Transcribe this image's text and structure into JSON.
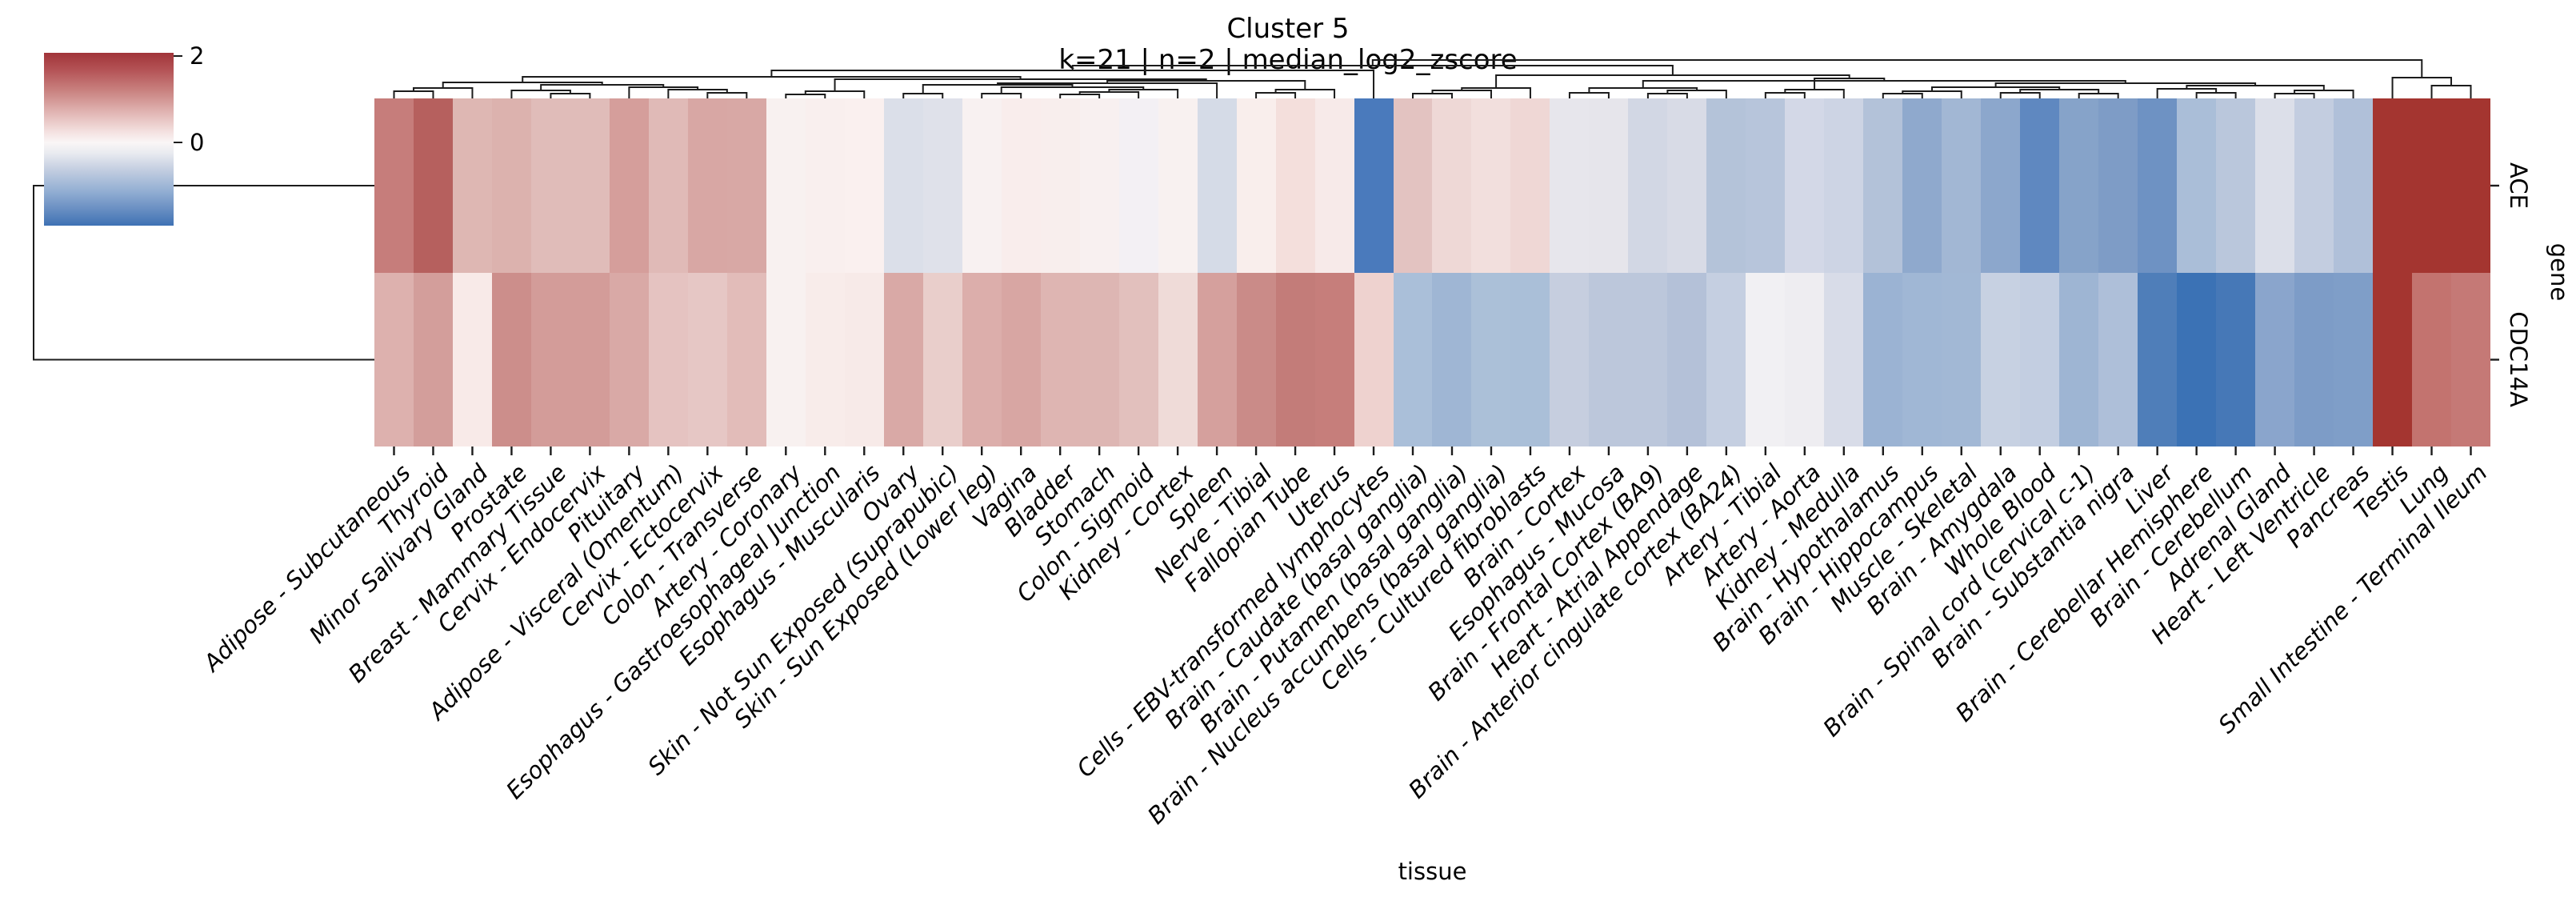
{
  "title": "Cluster 5",
  "subtitle": "k=21 | n=2 | median_log2_zscore",
  "chart_data": {
    "type": "heatmap",
    "title": "Cluster 5",
    "subtitle": "k=21 | n=2 | median_log2_zscore",
    "xlabel": "tissue",
    "ylabel": "gene",
    "rows": [
      "ACE",
      "CDC14A"
    ],
    "columns": [
      "Adipose - Subcutaneous",
      "Thyroid",
      "Minor Salivary Gland",
      "Prostate",
      "Breast - Mammary Tissue",
      "Cervix - Endocervix",
      "Pituitary",
      "Adipose - Visceral (Omentum)",
      "Cervix - Ectocervix",
      "Colon - Transverse",
      "Artery - Coronary",
      "Esophagus - Gastroesophageal Junction",
      "Esophagus - Muscularis",
      "Ovary",
      "Skin - Not Sun Exposed (Suprapubic)",
      "Skin - Sun Exposed (Lower leg)",
      "Vagina",
      "Bladder",
      "Stomach",
      "Colon - Sigmoid",
      "Kidney - Cortex",
      "Spleen",
      "Nerve - Tibial",
      "Fallopian Tube",
      "Uterus",
      "Cells - EBV-transformed lymphocytes",
      "Brain - Caudate (basal ganglia)",
      "Brain - Putamen (basal ganglia)",
      "Brain - Nucleus accumbens (basal ganglia)",
      "Cells - Cultured fibroblasts",
      "Brain - Cortex",
      "Esophagus - Mucosa",
      "Brain - Frontal Cortex (BA9)",
      "Heart - Atrial Appendage",
      "Brain - Anterior cingulate cortex (BA24)",
      "Artery - Tibial",
      "Artery - Aorta",
      "Kidney - Medulla",
      "Brain - Hypothalamus",
      "Brain - Hippocampus",
      "Muscle - Skeletal",
      "Brain - Amygdala",
      "Whole Blood",
      "Brain - Spinal cord (cervical c-1)",
      "Brain - Substantia nigra",
      "Liver",
      "Brain - Cerebellar Hemisphere",
      "Brain - Cerebellum",
      "Adrenal Gland",
      "Heart - Left Ventricle",
      "Pancreas",
      "Testis",
      "Lung",
      "Small Intestine - Terminal Ileum"
    ],
    "series": [
      {
        "name": "ACE",
        "values": [
          1.1,
          1.55,
          0.5,
          0.55,
          0.45,
          0.45,
          0.75,
          0.5,
          0.65,
          0.65,
          0.05,
          0.07,
          0.06,
          -0.25,
          -0.22,
          0.05,
          0.08,
          0.07,
          0.05,
          0,
          0.05,
          -0.3,
          0.07,
          0.25,
          0.1,
          -1.6,
          0.4,
          0.25,
          0.2,
          0.27,
          -0.08,
          -0.08,
          -0.35,
          -0.28,
          -0.6,
          -0.58,
          -0.33,
          -0.4,
          -0.62,
          -0.95,
          -0.75,
          -1,
          -1.45,
          -1.05,
          -1.15,
          -1.3,
          -0.72,
          -0.55,
          -0.25,
          -0.48,
          -0.68,
          2.05,
          2.05,
          2.05
        ],
        "colors": [
          "#c67d7b",
          "#b6605e",
          "#deb7b3",
          "#dcb2ae",
          "#e0bcb9",
          "#e0bcb9",
          "#d59e9b",
          "#e0bab7",
          "#d8a7a4",
          "#d8a8a5",
          "#f8f1f0",
          "#f9efee",
          "#faf0ef",
          "#dbdfe9",
          "#dfe1ea",
          "#f8f1f1",
          "#f9edec",
          "#f8eeed",
          "#f8f0f0",
          "#f3f0f4",
          "#f8f1f0",
          "#d5dbe7",
          "#f9eeec",
          "#f4dfdc",
          "#f7eae9",
          "#4a7abc",
          "#e3c3c1",
          "#eed8d6",
          "#f2dfdd",
          "#efd7d5",
          "#e7e6ec",
          "#e6e5eb",
          "#d2d7e4",
          "#d8dbe6",
          "#b4c3d9",
          "#b7c5db",
          "#d3d8e7",
          "#cdd4e4",
          "#b3c2d9",
          "#8fa9cd",
          "#a2b7d4",
          "#8ca7cc",
          "#5f88c0",
          "#86a3c9",
          "#7e9cc6",
          "#6e92c3",
          "#aabed8",
          "#bac7dc",
          "#dcdfe9",
          "#c3cde0",
          "#b0c0d9",
          "#a43530",
          "#a43530",
          "#a43530"
        ]
      },
      {
        "name": "CDC14A",
        "values": [
          0.55,
          0.75,
          0.1,
          0.9,
          0.78,
          0.78,
          0.6,
          0.4,
          0.38,
          0.48,
          0.05,
          0.12,
          0.15,
          0.6,
          0.35,
          0.62,
          0.65,
          0.52,
          0.5,
          0.43,
          0.22,
          0.7,
          0.95,
          1.15,
          1.1,
          0.3,
          -0.7,
          -0.85,
          -0.68,
          -0.7,
          -0.45,
          -0.55,
          -0.55,
          -0.65,
          -0.45,
          -0.02,
          -0.05,
          -0.28,
          -0.9,
          -0.83,
          -0.82,
          -0.43,
          -0.48,
          -0.87,
          -0.7,
          -1.55,
          -1.8,
          -1.7,
          -1.1,
          -1.2,
          -1.18,
          2,
          1.2,
          1.15
        ],
        "colors": [
          "#ddb1ae",
          "#d39e9b",
          "#f8eae8",
          "#cc8e8b",
          "#d39c99",
          "#d39c99",
          "#d9a9a6",
          "#e5c3c1",
          "#e6c7c5",
          "#e2bcb9",
          "#f8f1f0",
          "#f8ecea",
          "#f7eae8",
          "#d9a9a6",
          "#e9cecb",
          "#dcaeab",
          "#d8a6a3",
          "#deb5b2",
          "#ddb6b3",
          "#e2c0bd",
          "#efdbd8",
          "#d5a09d",
          "#ca8b88",
          "#c37c79",
          "#c67e7b",
          "#eed2cf",
          "#aabfd9",
          "#9fb6d4",
          "#abc0d8",
          "#aabfd8",
          "#c6cedf",
          "#bcc7db",
          "#bcc7db",
          "#b4c1d8",
          "#c5cfe1",
          "#f1f0f3",
          "#eeedf1",
          "#d8dce8",
          "#9bb3d3",
          "#a0b7d5",
          "#a2b8d5",
          "#c7d1e2",
          "#c3cee1",
          "#9eb5d3",
          "#aebfd9",
          "#4f7eb9",
          "#3b72b5",
          "#4678b7",
          "#8aa5cc",
          "#7d9cc7",
          "#7f9ec8",
          "#a43530",
          "#c3736f",
          "#c57976"
        ]
      }
    ],
    "colorbar": {
      "tick_labels": [
        "2",
        "0"
      ],
      "tick_values": [
        2,
        0
      ],
      "vmin": -1.92,
      "vmax": 2.08,
      "colormap": "vlag (blue-white-red diverging)"
    },
    "legend_position": "top-left",
    "grid": false,
    "col_dendrogram_links": [
      [
        4,
        5,
        117
      ],
      [
        3,
        54,
        113
      ],
      [
        8,
        9,
        116
      ],
      [
        7,
        56,
        112
      ],
      [
        6,
        57,
        109
      ],
      [
        55,
        58,
        106
      ],
      [
        0,
        1,
        114
      ],
      [
        60,
        2,
        110
      ],
      [
        61,
        59,
        103
      ],
      [
        10,
        11,
        118
      ],
      [
        63,
        12,
        114
      ],
      [
        13,
        14,
        117
      ],
      [
        15,
        16,
        117
      ],
      [
        17,
        18,
        118
      ],
      [
        67,
        19,
        115
      ],
      [
        68,
        20,
        112
      ],
      [
        66,
        69,
        109
      ],
      [
        65,
        70,
        106
      ],
      [
        21,
        71,
        104
      ],
      [
        22,
        23,
        116
      ],
      [
        73,
        24,
        112
      ],
      [
        72,
        74,
        101
      ],
      [
        64,
        75,
        99
      ],
      [
        62,
        76,
        96
      ],
      [
        25,
        77,
        88
      ],
      [
        26,
        27,
        117
      ],
      [
        79,
        28,
        113
      ],
      [
        29,
        80,
        110
      ],
      [
        30,
        31,
        116
      ],
      [
        32,
        33,
        117
      ],
      [
        83,
        34,
        113
      ],
      [
        82,
        84,
        110
      ],
      [
        35,
        36,
        116
      ],
      [
        86,
        37,
        112
      ],
      [
        38,
        39,
        117
      ],
      [
        88,
        40,
        114
      ],
      [
        41,
        42,
        116
      ],
      [
        43,
        44,
        117
      ],
      [
        90,
        91,
        112
      ],
      [
        89,
        92,
        109
      ],
      [
        46,
        47,
        116
      ],
      [
        45,
        94,
        111
      ],
      [
        48,
        49,
        117
      ],
      [
        96,
        50,
        113
      ],
      [
        95,
        97,
        107
      ],
      [
        93,
        98,
        104
      ],
      [
        85,
        99,
        101
      ],
      [
        87,
        100,
        98
      ],
      [
        81,
        101,
        94
      ],
      [
        78,
        102,
        82
      ],
      [
        52,
        53,
        107
      ],
      [
        51,
        104,
        97
      ],
      [
        103,
        105,
        75
      ]
    ],
    "row_dendrogram": {
      "leaf_y": [
        232,
        449.5
      ],
      "root_x": 42,
      "leaf_x": 468
    }
  }
}
